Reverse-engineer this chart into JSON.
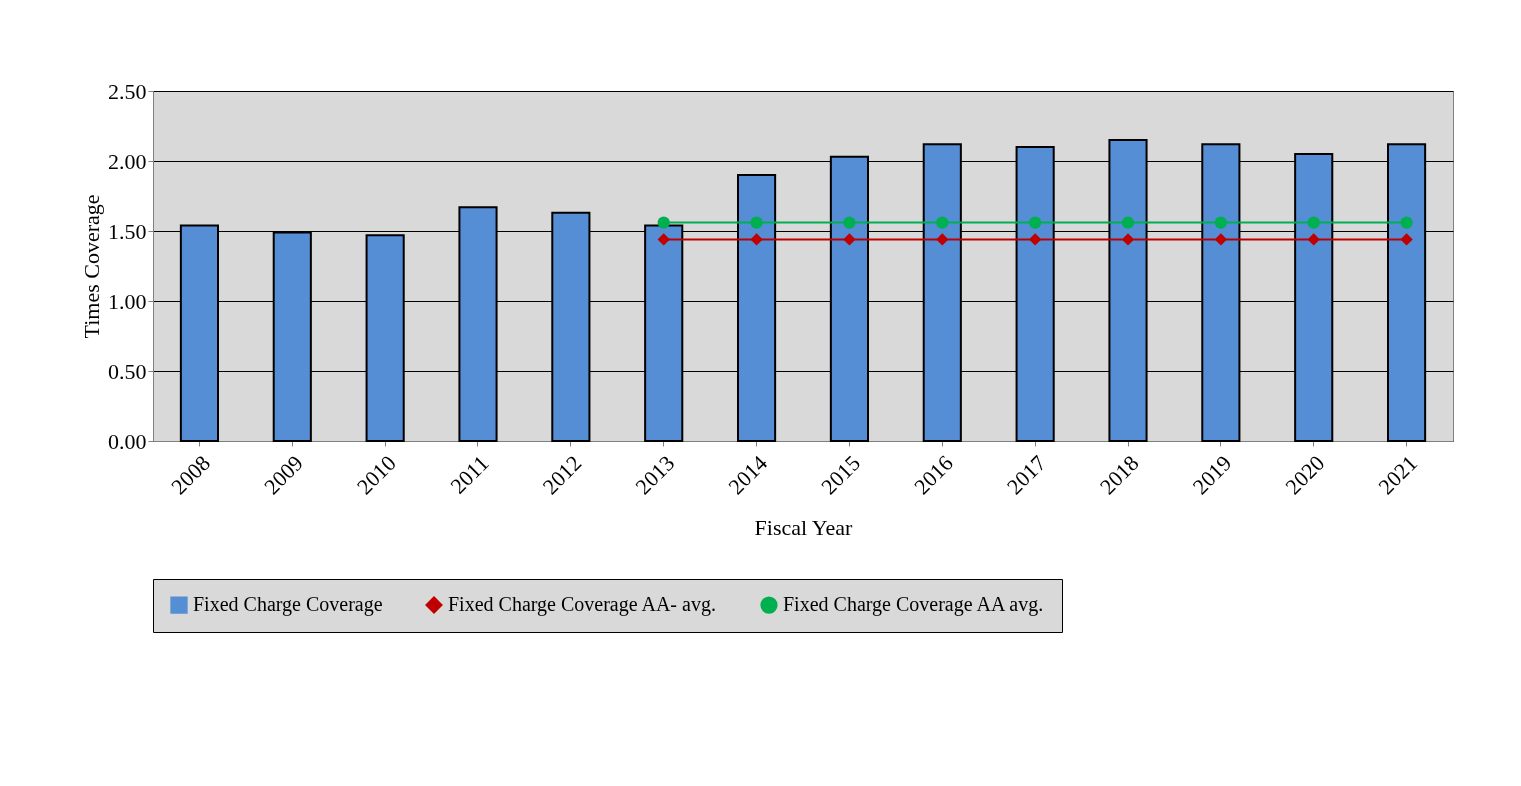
{
  "chart_data": {
    "type": "bar",
    "xlabel": "Fiscal Year",
    "ylabel": "Times Coverage",
    "categories": [
      "2008",
      "2009",
      "2010",
      "2011",
      "2012",
      "2013",
      "2014",
      "2015",
      "2016",
      "2017",
      "2018",
      "2019",
      "2020",
      "2021"
    ],
    "series": [
      {
        "name": "Fixed Charge Coverage",
        "color": "#558ed5",
        "values": [
          1.54,
          1.49,
          1.47,
          1.67,
          1.63,
          1.54,
          1.9,
          2.03,
          2.12,
          2.1,
          2.15,
          2.12,
          2.05,
          2.12
        ]
      },
      {
        "name": "Fixed Charge Coverage AA- avg.",
        "type": "line",
        "color": "#c00000",
        "marker": "diamond",
        "values": [
          null,
          null,
          null,
          null,
          null,
          1.44,
          1.44,
          1.44,
          1.44,
          1.44,
          1.44,
          1.44,
          1.44,
          1.44
        ]
      },
      {
        "name": "Fixed Charge Coverage AA avg.",
        "type": "line",
        "color": "#00b050",
        "marker": "circle",
        "values": [
          null,
          null,
          null,
          null,
          null,
          1.56,
          1.56,
          1.56,
          1.56,
          1.56,
          1.56,
          1.56,
          1.56,
          1.56
        ]
      }
    ],
    "ylim": [
      0,
      2.5
    ],
    "yticks": [
      {
        "value": 0,
        "label": "0.00"
      },
      {
        "value": 0.5,
        "label": "0.50"
      },
      {
        "value": 1,
        "label": "1.00"
      },
      {
        "value": 1.5,
        "label": "1.50"
      },
      {
        "value": 2,
        "label": "2.00"
      },
      {
        "value": 2.5,
        "label": "2.50"
      }
    ],
    "grid": "y",
    "legend": "bottom",
    "line_style": "solid"
  }
}
